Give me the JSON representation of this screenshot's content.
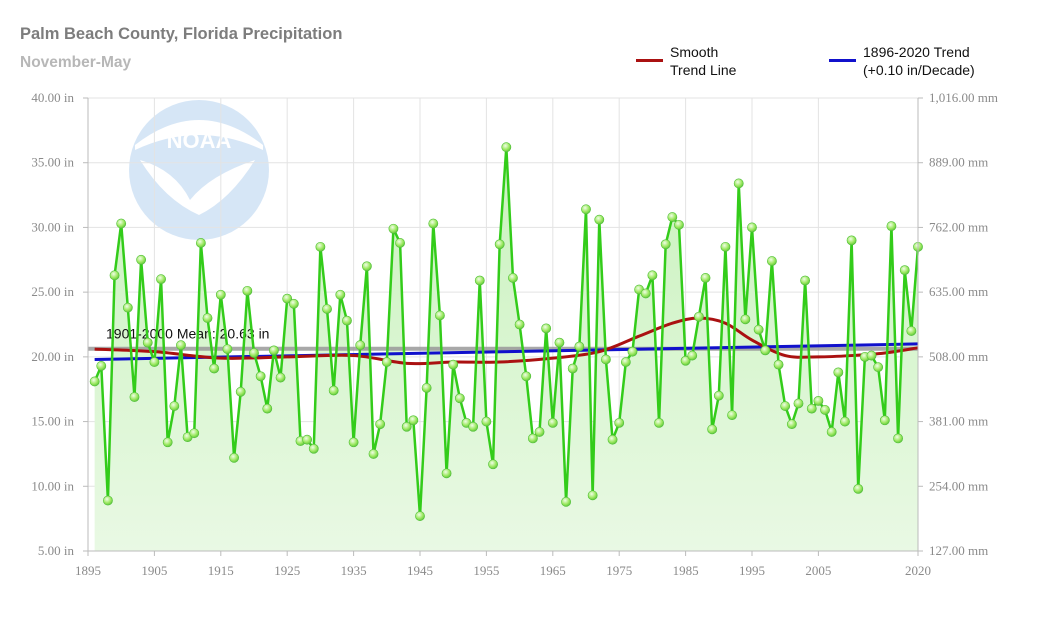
{
  "chart_data": {
    "type": "line",
    "title": "Palm Beach County, Florida Precipitation",
    "subtitle": "November-May",
    "xlim": [
      1895,
      2020
    ],
    "ylim": [
      5,
      40
    ],
    "x_ticks": [
      1895,
      1905,
      1915,
      1925,
      1935,
      1945,
      1955,
      1965,
      1975,
      1985,
      1995,
      2005,
      2020
    ],
    "y_ticks": [
      5,
      10,
      15,
      20,
      25,
      30,
      35,
      40
    ],
    "y_tick_labels": [
      "5.00 in",
      "10.00 in",
      "15.00 in",
      "20.00 in",
      "25.00 in",
      "30.00 in",
      "35.00 in",
      "40.00 in"
    ],
    "y2_tick_labels": [
      "127.00 mm",
      "254.00 mm",
      "381.00 mm",
      "508.00 mm",
      "635.00 mm",
      "762.00 mm",
      "889.00 mm",
      "1,016.00 mm"
    ],
    "grid": true,
    "legend_position": "top-right",
    "legend": [
      {
        "label_line1": "Smooth",
        "label_line2": "Trend Line",
        "color": "#aa1111"
      },
      {
        "label_line1": "1896-2020 Trend",
        "label_line2": "(+0.10 in/Decade)",
        "color": "#1111cc"
      }
    ],
    "colors": {
      "series": "#33cc1a",
      "marker": "#9be85f",
      "fill_top": "#b6ecaa",
      "fill_bottom": "#e6f8e1",
      "mean": "#999999",
      "grid": "#e3e3e3"
    },
    "mean_label": "1901-2000 Mean: 20.63 in",
    "mean_value": 20.63,
    "series": [
      {
        "x_start": 1896,
        "values": [
          18.1,
          19.3,
          8.9,
          26.3,
          30.3,
          23.8,
          16.9,
          27.5,
          21.1,
          19.6,
          26.0,
          13.4,
          16.2,
          20.9,
          13.8,
          14.1,
          28.8,
          23.0,
          19.1,
          24.8,
          20.6,
          12.2,
          17.3,
          25.1,
          20.3,
          18.5,
          16.0,
          20.5,
          18.4,
          24.5,
          24.1,
          13.5,
          13.6,
          12.9,
          28.5,
          23.7,
          17.4,
          24.8,
          22.8,
          13.4,
          20.9,
          27.0,
          12.5,
          14.8,
          19.6,
          29.9,
          28.8,
          14.6,
          15.1,
          7.7,
          17.6,
          30.3,
          23.2,
          11.0,
          19.4,
          16.8,
          14.9,
          14.6,
          25.9,
          15.0,
          11.7,
          28.7,
          36.2,
          26.1,
          22.5,
          18.5,
          13.7,
          14.2,
          22.2,
          14.9,
          21.1,
          8.8,
          19.1,
          20.8,
          31.4,
          9.3,
          30.6,
          19.8,
          13.6,
          14.9,
          19.6,
          20.4,
          25.2,
          24.9,
          26.3,
          14.9,
          28.7,
          30.8,
          30.2,
          19.7,
          20.1,
          23.1,
          26.1,
          14.4,
          17.0,
          28.5,
          15.5,
          33.4,
          22.9,
          30.0,
          22.1,
          20.5,
          27.4,
          19.4,
          16.2,
          14.8,
          16.4,
          25.9,
          16.0,
          16.6,
          15.9,
          14.2,
          18.8,
          15.0,
          29.0,
          9.8,
          20.0,
          20.1,
          19.2,
          15.1,
          30.1,
          13.7,
          26.7,
          22.0,
          28.5
        ]
      }
    ],
    "smooth_trend": {
      "x": [
        1896,
        1905,
        1915,
        1925,
        1935,
        1943,
        1950,
        1957,
        1965,
        1972,
        1978,
        1983,
        1987,
        1991,
        1995,
        2000,
        2005,
        2010,
        2015,
        2020
      ],
      "y": [
        20.6,
        20.4,
        19.9,
        20.0,
        20.1,
        19.5,
        19.6,
        19.6,
        19.9,
        20.4,
        21.6,
        22.6,
        23.0,
        22.6,
        21.3,
        20.1,
        20.0,
        20.1,
        20.3,
        20.7
      ]
    },
    "linear_trend": {
      "x": [
        1896,
        2020
      ],
      "y": [
        19.8,
        21.0
      ]
    }
  }
}
